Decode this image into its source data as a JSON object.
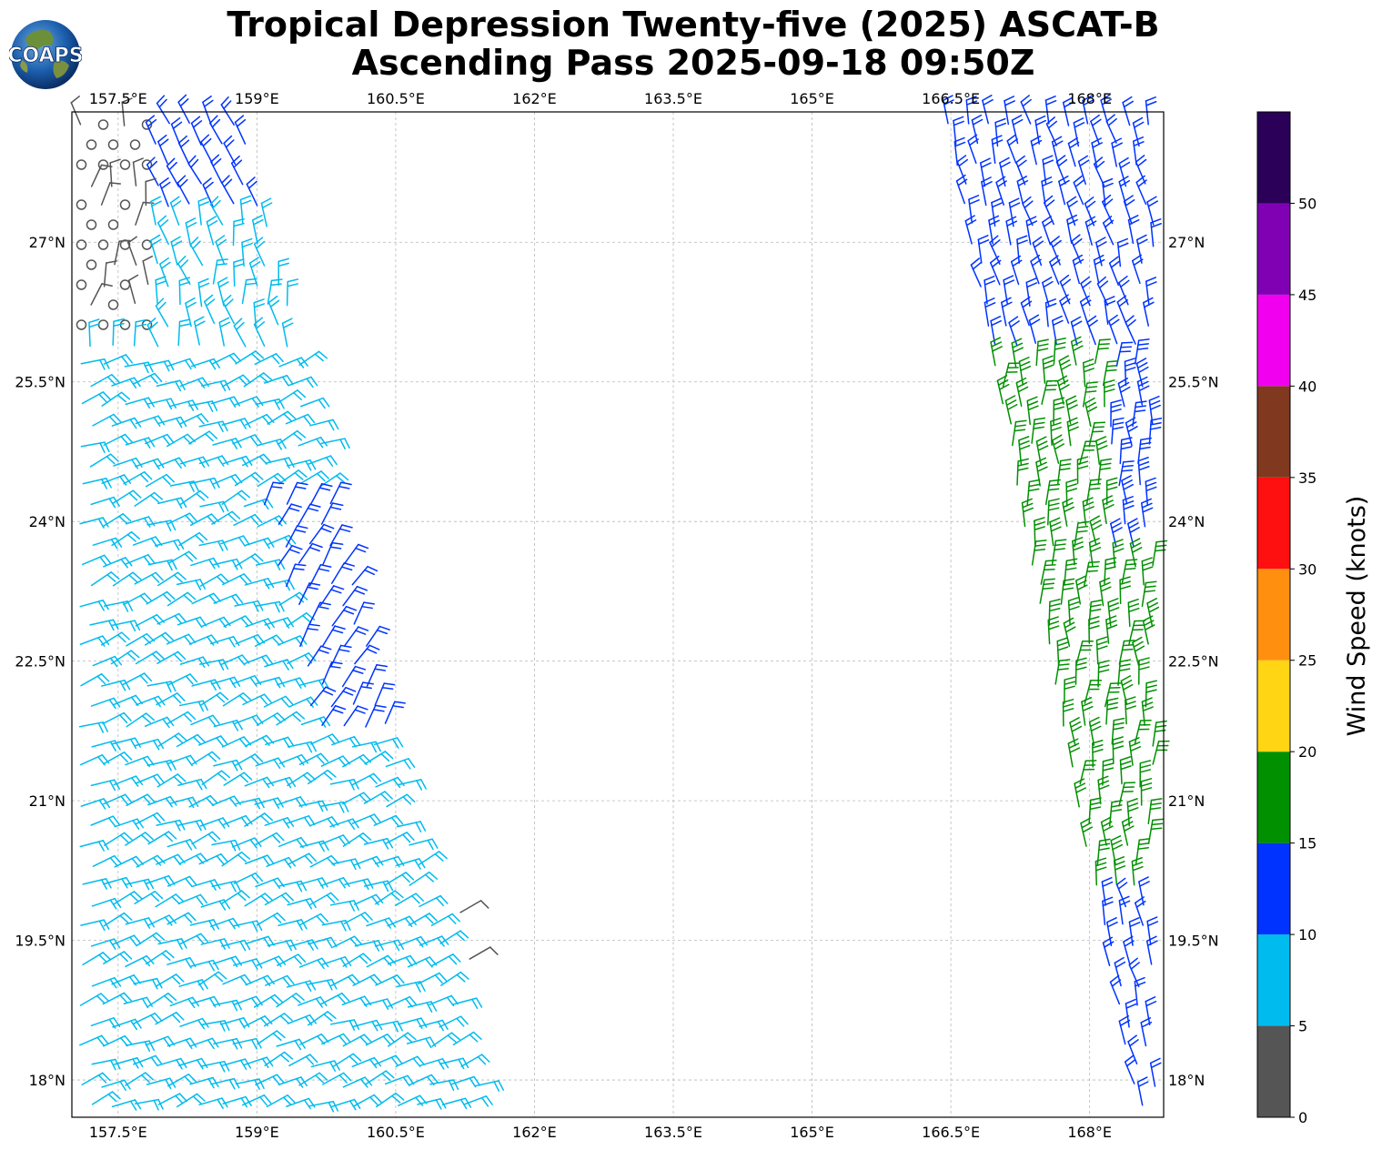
{
  "title": {
    "line1": "Tropical Depression Twenty-five (2025) ASCAT-B",
    "line2": "Ascending Pass 2025-09-18 09:50Z"
  },
  "logo": {
    "text": "COAPS"
  },
  "map": {
    "lon_range": [
      157.0,
      168.8
    ],
    "lat_range": [
      17.6,
      28.4
    ],
    "lon_ticks": [
      "157.5°E",
      "159°E",
      "160.5°E",
      "162°E",
      "163.5°E",
      "165°E",
      "166.5°E",
      "168°E"
    ],
    "lon_tick_values": [
      157.5,
      159,
      160.5,
      162,
      163.5,
      165,
      166.5,
      168
    ],
    "lat_ticks": [
      "27°N",
      "25.5°N",
      "24°N",
      "22.5°N",
      "21°N",
      "19.5°N",
      "18°N"
    ],
    "lat_tick_values": [
      27,
      25.5,
      24,
      22.5,
      21,
      19.5,
      18
    ],
    "gridlines": true,
    "swaths": {
      "west": {
        "lon_min_north": 157.0,
        "lon_max_north": 158.9,
        "lon_max_south": 161.5,
        "lat_top": 28.4,
        "lat_bottom": 17.6
      },
      "east": {
        "lon_min_north": 166.4,
        "lon_min_south": 168.5,
        "lon_max": 168.8,
        "lat_top": 28.4,
        "lat_bottom": 17.6
      }
    }
  },
  "colorbar": {
    "label": "Wind Speed (knots)",
    "tick_labels": [
      "0",
      "5",
      "10",
      "15",
      "20",
      "25",
      "30",
      "35",
      "40",
      "45",
      "50"
    ],
    "bins": [
      {
        "min": 0,
        "max": 5,
        "color": "#555555"
      },
      {
        "min": 5,
        "max": 10,
        "color": "#00bbee"
      },
      {
        "min": 10,
        "max": 15,
        "color": "#0033ff"
      },
      {
        "min": 15,
        "max": 20,
        "color": "#009000"
      },
      {
        "min": 20,
        "max": 25,
        "color": "#ffd514"
      },
      {
        "min": 25,
        "max": 30,
        "color": "#ff8f0f"
      },
      {
        "min": 30,
        "max": 35,
        "color": "#ff1010"
      },
      {
        "min": 35,
        "max": 40,
        "color": "#80391f"
      },
      {
        "min": 40,
        "max": 45,
        "color": "#f000ee"
      },
      {
        "min": 45,
        "max": 50,
        "color": "#8000b3"
      },
      {
        "min": 50,
        "max": 55,
        "color": "#2a0058"
      }
    ]
  },
  "barb_colors": {
    "calm": "#555555",
    "light": "#00bbee",
    "moderate": "#0033ff",
    "fresh": "#009000"
  }
}
